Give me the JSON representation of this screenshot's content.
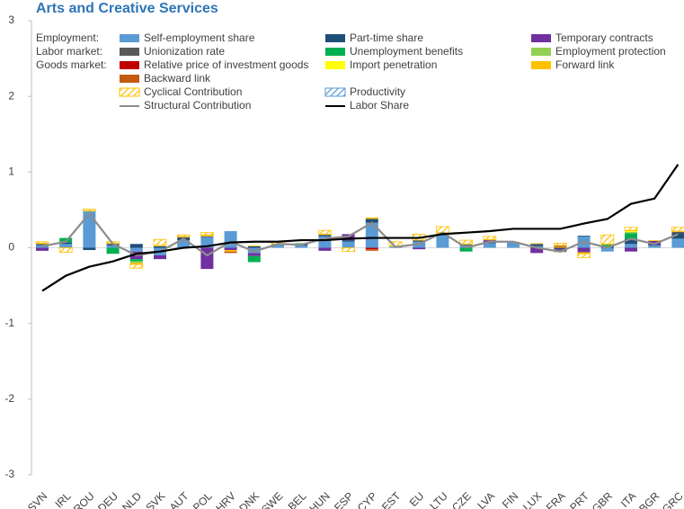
{
  "chart_data": {
    "type": "bar",
    "title": "Arts and Creative Services",
    "categories": [
      "SVN",
      "IRL",
      "ROU",
      "DEU",
      "NLD",
      "SVK",
      "AUT",
      "POL",
      "HRV",
      "DNK",
      "SWE",
      "BEL",
      "HUN",
      "ESP",
      "CYP",
      "EST",
      "EU",
      "LTU",
      "CZE",
      "LVA",
      "FIN",
      "LUX",
      "FRA",
      "PRT",
      "GBR",
      "ITA",
      "BGR",
      "GRC"
    ],
    "ylim": [
      -3,
      3
    ],
    "yticks": [
      -3,
      -2,
      -1,
      0,
      1,
      2,
      3
    ],
    "legend_groups": [
      "Employment:",
      "Labor market:",
      "Goods market:"
    ],
    "series": [
      {
        "name": "Self-employment share",
        "color": "#5b9bd5",
        "values": [
          0.03,
          0.05,
          0.48,
          0.03,
          -0.05,
          -0.1,
          0.1,
          0.14,
          0.22,
          -0.07,
          0.04,
          0.03,
          0.15,
          0.08,
          0.33,
          0.02,
          0.08,
          0.18,
          0.03,
          0.06,
          0.07,
          0.02,
          0,
          0.15,
          -0.05,
          0.05,
          0.03,
          0.12
        ]
      },
      {
        "name": "Part-time share",
        "color": "#1f4e79",
        "values": [
          0.01,
          0.02,
          -0.03,
          0.02,
          0.05,
          0.02,
          0.03,
          0.01,
          0,
          0.02,
          0.01,
          0.02,
          0.02,
          0.02,
          0.05,
          0,
          0.02,
          0,
          0.01,
          0.01,
          0,
          0.03,
          -0.02,
          0.01,
          0.02,
          0.07,
          0.01,
          0.07
        ]
      },
      {
        "name": "Temporary contracts",
        "color": "#7030a0",
        "values": [
          -0.04,
          0,
          0,
          0,
          -0.1,
          -0.05,
          0,
          -0.28,
          -0.03,
          -0.04,
          0,
          0,
          -0.04,
          0.08,
          0,
          0,
          -0.02,
          0,
          0,
          0.03,
          0,
          -0.07,
          -0.03,
          -0.06,
          0,
          -0.05,
          0.05,
          0
        ]
      },
      {
        "name": "Unionization rate",
        "color": "#595959",
        "values": [
          0.01,
          0,
          0,
          0,
          0,
          0,
          0.01,
          0,
          0,
          0,
          0,
          0,
          0,
          0,
          0,
          0,
          0,
          0,
          0,
          0,
          0,
          0,
          0,
          0,
          0,
          0,
          0,
          0.02
        ]
      },
      {
        "name": "Unemployment benefits",
        "color": "#00b050",
        "values": [
          0,
          0.06,
          0,
          -0.08,
          -0.03,
          0,
          0,
          0,
          0,
          -0.08,
          0,
          0.01,
          0,
          0,
          0,
          0,
          0,
          0,
          -0.05,
          0,
          0,
          0,
          0,
          0,
          0.02,
          0.07,
          0,
          0
        ]
      },
      {
        "name": "Employment protection",
        "color": "#92d050",
        "values": [
          0,
          0,
          0,
          0,
          -0.02,
          0,
          0,
          0,
          0,
          0,
          0,
          0,
          0,
          0,
          0,
          0,
          0,
          0,
          0,
          0,
          0,
          0,
          -0.01,
          0,
          0,
          0.02,
          0,
          0
        ]
      },
      {
        "name": "Relative price of investment goods",
        "color": "#c00000",
        "values": [
          0,
          0,
          0,
          0,
          0,
          0,
          0,
          0,
          0,
          0,
          0,
          0,
          0,
          0,
          -0.02,
          0,
          0,
          0,
          0,
          0,
          0,
          0,
          0,
          0,
          0,
          0,
          0,
          0
        ]
      },
      {
        "name": "Import penetration",
        "color": "#ffff00",
        "values": [
          0,
          0,
          0,
          0,
          0,
          0,
          0,
          0,
          0,
          0,
          0,
          0,
          0,
          0,
          0,
          0,
          0,
          0,
          0,
          0,
          0,
          0,
          0,
          0,
          0,
          0.01,
          0,
          0
        ]
      },
      {
        "name": "Forward link",
        "color": "#ffc000",
        "values": [
          0.01,
          0,
          0.01,
          0.01,
          -0.02,
          0.01,
          0.01,
          0.02,
          -0.02,
          0.01,
          0,
          0,
          0.01,
          0,
          0.02,
          0,
          0,
          0.02,
          0.01,
          0.01,
          0.01,
          0.01,
          0.01,
          -0.02,
          0.01,
          0.01,
          0.01,
          0.01
        ]
      },
      {
        "name": "Backward link",
        "color": "#c55a11",
        "values": [
          0,
          0,
          0,
          0,
          0,
          0,
          0,
          0,
          -0.02,
          0,
          0,
          0,
          0,
          0,
          -0.02,
          0,
          0,
          0,
          0,
          0,
          0,
          0,
          0.02,
          0,
          0,
          0,
          0,
          0
        ]
      },
      {
        "name": "Cyclical Contribution",
        "color": "#ffc000",
        "hatched": true,
        "values": [
          0.02,
          -0.06,
          0.02,
          0.02,
          -0.05,
          0.08,
          0.02,
          0.03,
          0,
          0,
          0.02,
          0,
          0.05,
          -0.05,
          0,
          0.06,
          0.08,
          0.08,
          0.05,
          0.04,
          0,
          0,
          0.03,
          -0.05,
          0.12,
          0.04,
          0,
          0.05
        ]
      },
      {
        "name": "Productivity",
        "color": "#5b9bd5",
        "hatched": true,
        "values": [
          0,
          0,
          0,
          0,
          0,
          0,
          0,
          0,
          0,
          0,
          0,
          0,
          0,
          0,
          0,
          0,
          0,
          0,
          0,
          0,
          0,
          0,
          0,
          0,
          0,
          0,
          0,
          0
        ]
      },
      {
        "name": "Structural Contribution",
        "color": "#8c8c8c",
        "type": "line",
        "values": [
          0.02,
          0.08,
          0.45,
          0.05,
          -0.1,
          -0.05,
          0.12,
          -0.1,
          0.08,
          -0.05,
          0.05,
          0.04,
          0.12,
          0.15,
          0.33,
          0.01,
          0.05,
          0.2,
          0,
          0.08,
          0.08,
          0,
          -0.05,
          0.08,
          0,
          0.12,
          0.05,
          0.18
        ]
      },
      {
        "name": "Labor Share",
        "color": "#000000",
        "type": "line",
        "values": [
          -0.57,
          -0.37,
          -0.25,
          -0.18,
          -0.08,
          -0.05,
          0,
          0.02,
          0.07,
          0.08,
          0.08,
          0.1,
          0.1,
          0.12,
          0.13,
          0.13,
          0.13,
          0.18,
          0.2,
          0.22,
          0.25,
          0.25,
          0.25,
          0.32,
          0.38,
          0.58,
          0.65,
          1.1
        ]
      }
    ]
  }
}
